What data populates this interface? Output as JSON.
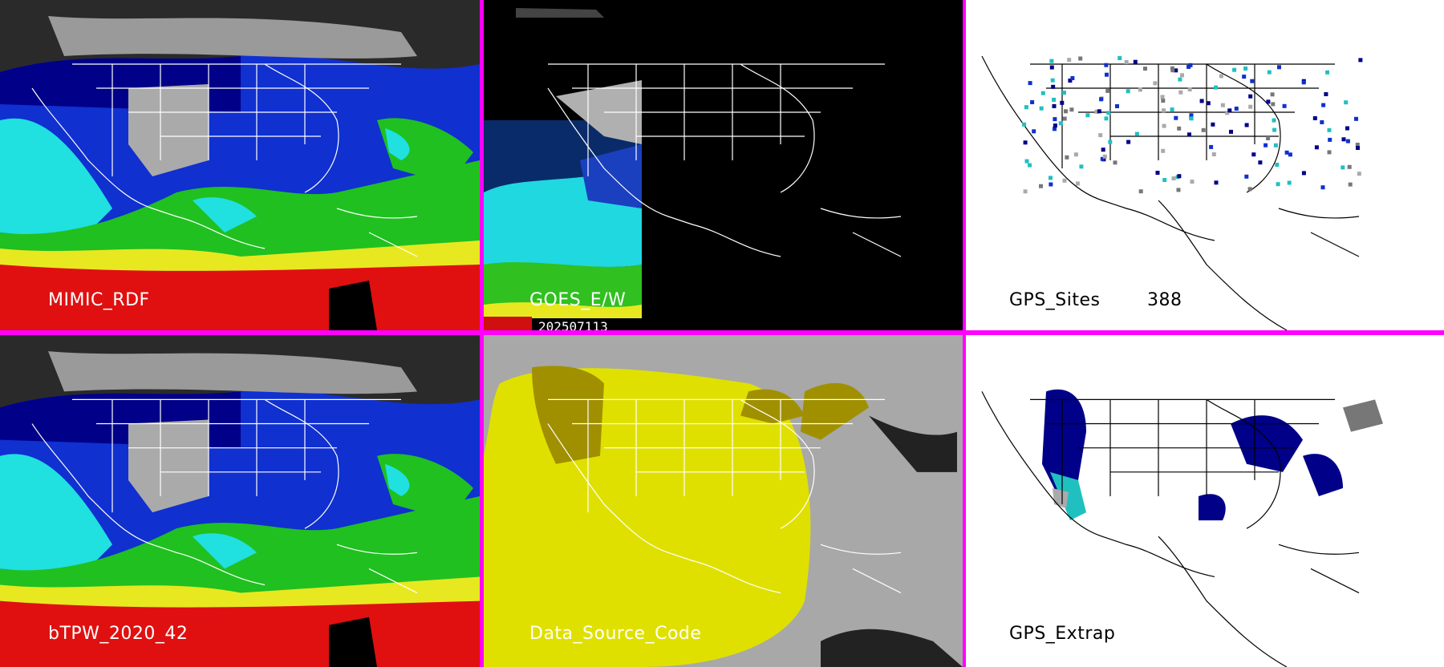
{
  "panels": {
    "top_left": {
      "label": "MIMIC_RDF"
    },
    "top_center": {
      "label": "GOES_E/W",
      "date": "202507113"
    },
    "top_right": {
      "label": "GPS_Sites",
      "count": "388"
    },
    "bottom_left": {
      "label": "bTPW_2020_42"
    },
    "bottom_center": {
      "label": "Data_Source_Code"
    },
    "bottom_right": {
      "label": "GPS_Extrap"
    }
  },
  "colors": {
    "divider": "#ff00ff",
    "tpw_dark": "#2a2a2a",
    "tpw_gray": "#9a9a9a",
    "tpw_navy": "#000088",
    "tpw_blue": "#1030d0",
    "tpw_cyan": "#20e0e0",
    "tpw_green": "#20c020",
    "tpw_yellow": "#e8e820",
    "tpw_red": "#e01010",
    "source_gray": "#a8a8a8",
    "source_yellow": "#e0e000",
    "source_olive": "#a09000",
    "map_line_on_dark": "#ffffff",
    "map_line_on_light": "#000000"
  }
}
